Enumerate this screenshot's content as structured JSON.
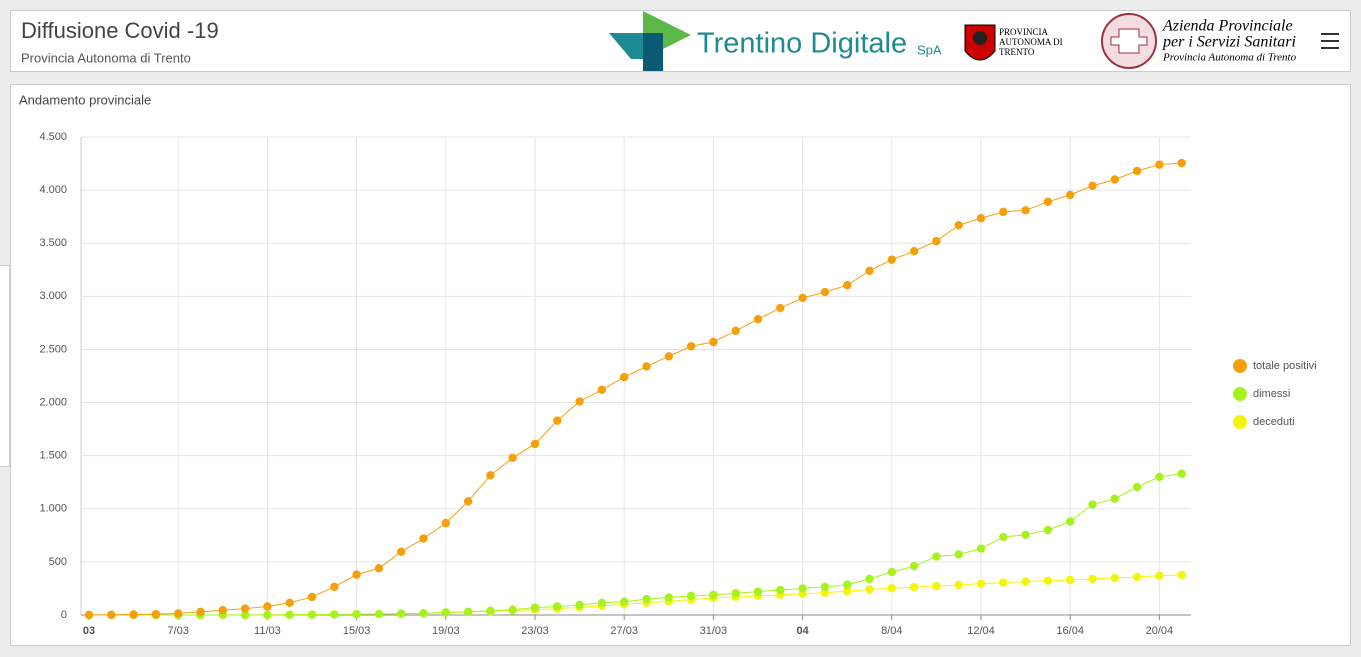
{
  "header": {
    "title": "Diffusione Covid -19",
    "subtitle": "Provincia Autonoma di Trento",
    "logo1": "Trentino Digitale",
    "logo1_suffix": "SpA",
    "logo2": "PROVINCIA AUTONOMA DI TRENTO",
    "logo3_line1": "Azienda Provinciale",
    "logo3_line2": "per i Servizi Sanitari",
    "logo3_line3": "Provincia Autonoma di Trento"
  },
  "chart_data": {
    "type": "line",
    "title": "Andamento provinciale",
    "categories": [
      "03",
      null,
      null,
      null,
      "7/03",
      null,
      null,
      null,
      "11/03",
      null,
      null,
      null,
      "15/03",
      null,
      null,
      null,
      "19/03",
      null,
      null,
      null,
      "23/03",
      null,
      null,
      null,
      "27/03",
      null,
      null,
      null,
      "31/03",
      null,
      null,
      null,
      "04",
      null,
      null,
      null,
      "8/04",
      null,
      null,
      null,
      "12/04",
      null,
      null,
      null,
      "16/04",
      null,
      null,
      null,
      "20/04",
      null
    ],
    "series": [
      {
        "name": "totale positivi",
        "color": "#f5a00a",
        "values": [
          1,
          2,
          5,
          8,
          15,
          30,
          45,
          60,
          80,
          115,
          170,
          265,
          380,
          440,
          595,
          720,
          865,
          1070,
          1315,
          1480,
          1610,
          1830,
          2010,
          2120,
          2240,
          2340,
          2435,
          2530,
          2570,
          2675,
          2785,
          2890,
          2985,
          3040,
          3105,
          3240,
          3345,
          3425,
          3520,
          3670,
          3735,
          3795,
          3810,
          3890,
          3955,
          4040,
          4100,
          4180,
          4240,
          4255
        ]
      },
      {
        "name": "dimessi",
        "color": "#a6f21c",
        "values": [
          0,
          0,
          0,
          0,
          0,
          0,
          0,
          0,
          0,
          2,
          3,
          5,
          7,
          9,
          12,
          15,
          25,
          30,
          40,
          50,
          70,
          80,
          95,
          115,
          125,
          150,
          165,
          180,
          190,
          205,
          220,
          235,
          250,
          265,
          285,
          340,
          405,
          460,
          550,
          570,
          625,
          735,
          755,
          800,
          880,
          1040,
          1095,
          1205,
          1300,
          1330
        ]
      },
      {
        "name": "deceduti",
        "color": "#f5f50a",
        "values": [
          0,
          0,
          0,
          0,
          0,
          0,
          0,
          1,
          2,
          3,
          4,
          6,
          8,
          10,
          13,
          17,
          22,
          28,
          35,
          43,
          50,
          60,
          72,
          85,
          100,
          115,
          130,
          145,
          160,
          170,
          180,
          190,
          200,
          210,
          225,
          240,
          252,
          263,
          272,
          283,
          295,
          305,
          315,
          322,
          330,
          340,
          348,
          358,
          370,
          378
        ]
      }
    ],
    "ylim": [
      0,
      4500
    ],
    "yticks": [
      0,
      {
        "value": 500,
        "label": "500"
      },
      {
        "value": 1000,
        "label": "1.000"
      },
      {
        "value": 1500,
        "label": "1.500"
      },
      {
        "value": 2000,
        "label": "2.000"
      },
      {
        "value": 2500,
        "label": "2.500"
      },
      {
        "value": 3000,
        "label": "3.000"
      },
      {
        "value": 3500,
        "label": "3.500"
      },
      {
        "value": 4000,
        "label": "4.000"
      },
      {
        "value": 4500,
        "label": "4.500"
      }
    ],
    "grid": true,
    "legend": "right"
  }
}
